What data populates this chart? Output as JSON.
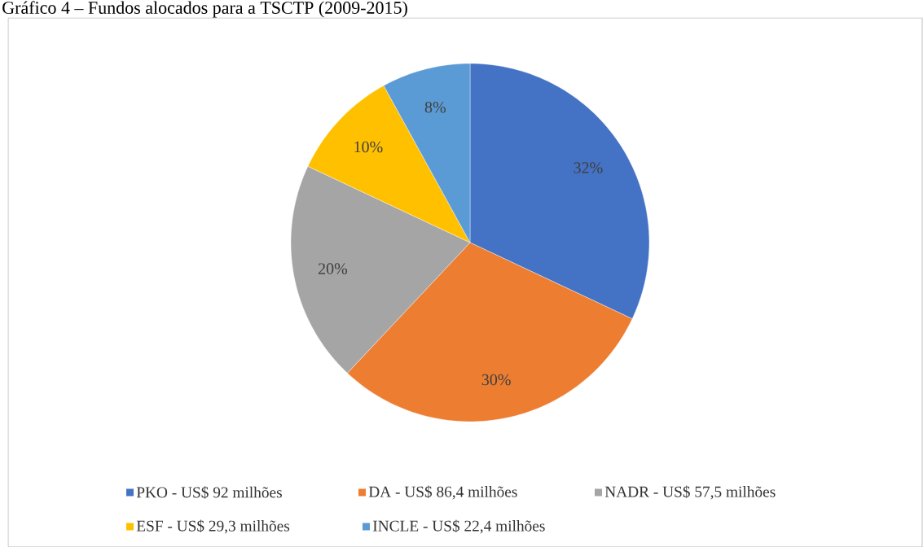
{
  "chart_data": {
    "type": "pie",
    "title": "Gráfico 4 – Fundos alocados para a TSCTP (2009-2015)",
    "categories": [
      "PKO - US$ 92 milhões",
      "DA - US$ 86,4 milhões",
      "NADR - US$ 57,5 milhões",
      "ESF - US$ 29,3 milhões",
      "INCLE - US$ 22,4 milhões"
    ],
    "values": [
      32,
      30,
      20,
      10,
      8
    ],
    "value_labels": [
      "32%",
      "30%",
      "20%",
      "10%",
      "8%"
    ],
    "colors": [
      "#4472c4",
      "#ed7d31",
      "#a5a5a5",
      "#ffc000",
      "#5b9bd5"
    ],
    "legend": "bottom"
  }
}
